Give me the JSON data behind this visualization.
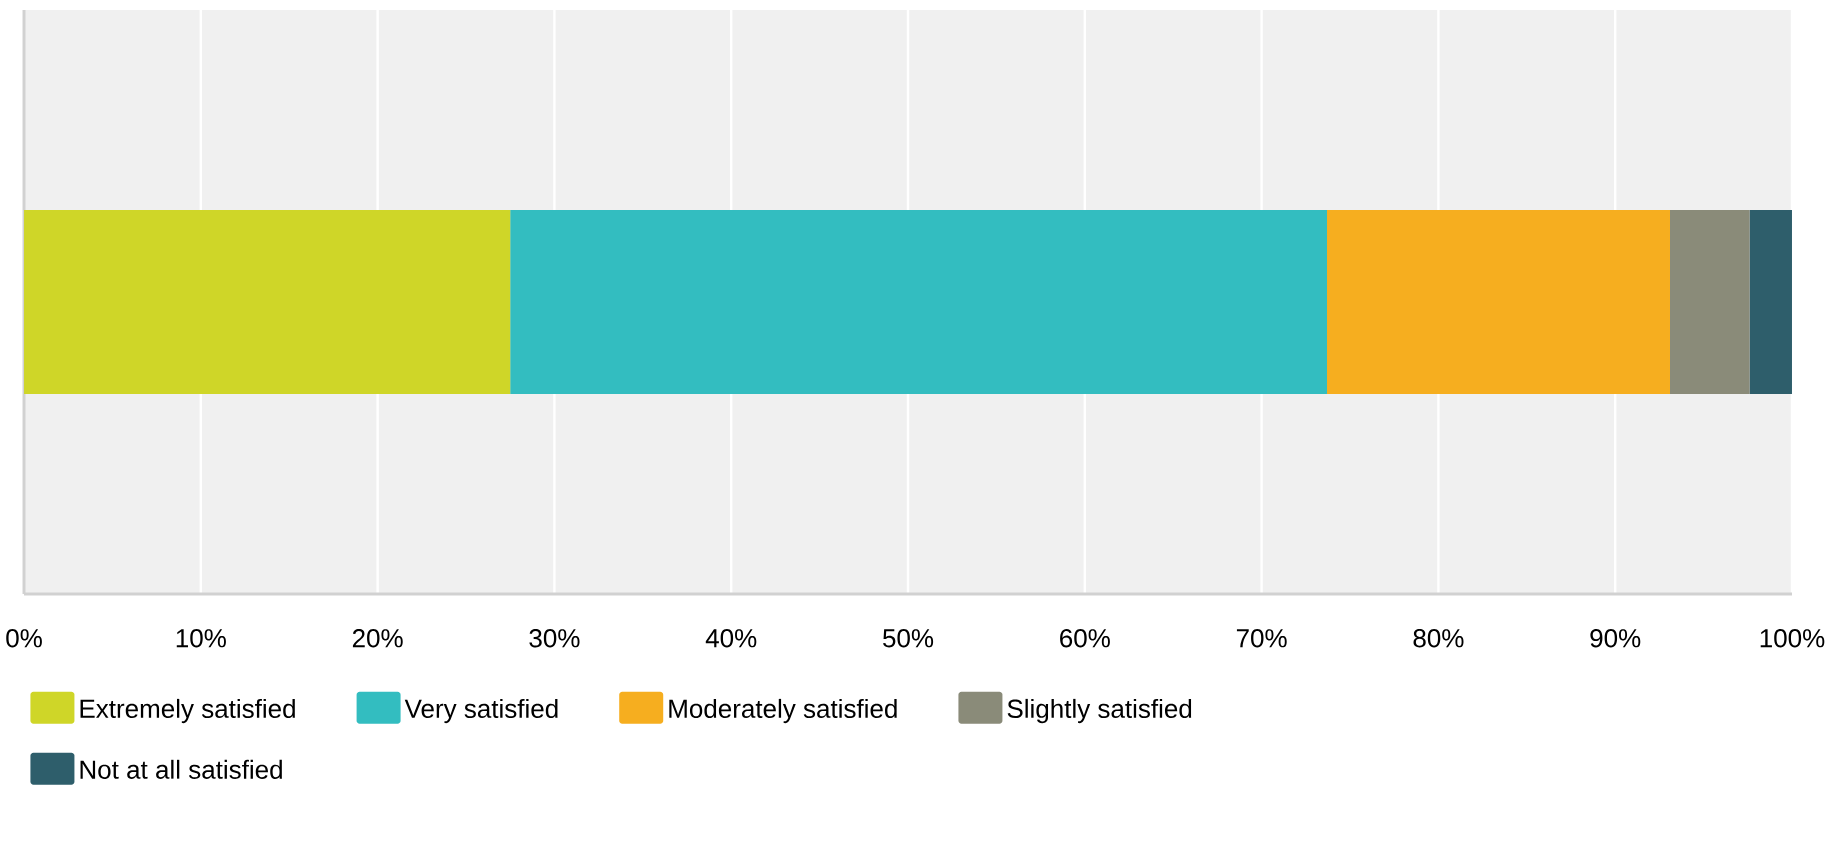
{
  "chart_data": {
    "type": "bar",
    "orientation": "horizontal",
    "stacked": true,
    "categories": [
      null
    ],
    "series": [
      {
        "name": "Extremely satisfied",
        "color": "#cfd628",
        "values": [
          27.5
        ]
      },
      {
        "name": "Very satisfied",
        "color": "#33bdc0",
        "values": [
          46.2
        ]
      },
      {
        "name": "Moderately satisfied",
        "color": "#f6ae1f",
        "values": [
          19.4
        ]
      },
      {
        "name": "Slightly satisfied",
        "color": "#8a8b79",
        "values": [
          4.5
        ]
      },
      {
        "name": "Not at all satisfied",
        "color": "#2e5e6b",
        "values": [
          2.4
        ]
      }
    ],
    "xlim": [
      0,
      100
    ],
    "xticks": [
      {
        "value": 0,
        "label": "0%"
      },
      {
        "value": 10,
        "label": "10%"
      },
      {
        "value": 20,
        "label": "20%"
      },
      {
        "value": 30,
        "label": "30%"
      },
      {
        "value": 40,
        "label": "40%"
      },
      {
        "value": 50,
        "label": "50%"
      },
      {
        "value": 60,
        "label": "60%"
      },
      {
        "value": 70,
        "label": "70%"
      },
      {
        "value": 80,
        "label": "80%"
      },
      {
        "value": 90,
        "label": "90%"
      },
      {
        "value": 100,
        "label": "100%"
      }
    ],
    "grid": "x",
    "legend": "bottom"
  }
}
